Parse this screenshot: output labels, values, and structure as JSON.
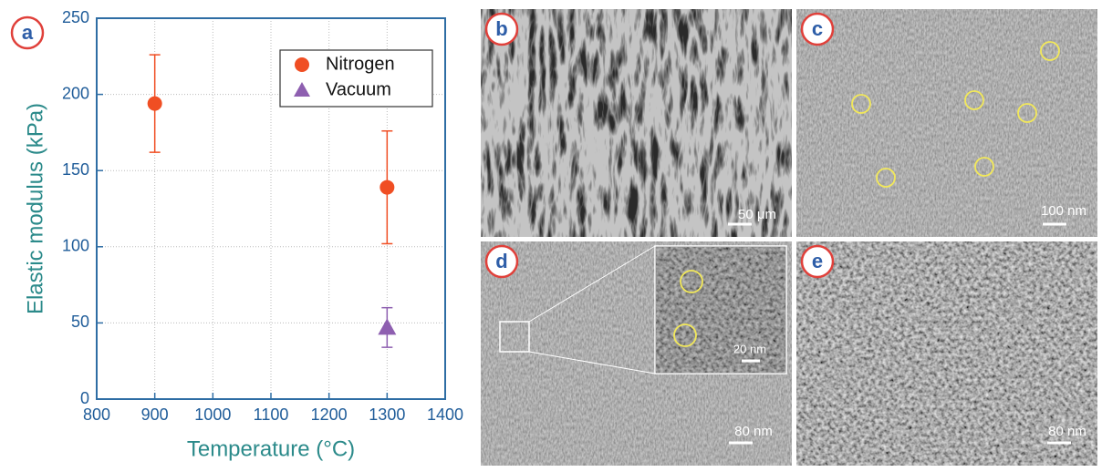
{
  "chart_data": {
    "type": "scatter",
    "panel_label": "a",
    "x_label": "Temperature (°C)",
    "y_label": "Elastic modulus (kPa)",
    "series": [
      {
        "name": "Nitrogen",
        "color": "#f04e23",
        "marker": "circle",
        "x": [
          900,
          1300
        ],
        "values": [
          194,
          139
        ],
        "errors": [
          32,
          37
        ]
      },
      {
        "name": "Vacuum",
        "color": "#8e5fb0",
        "marker": "triangle",
        "x": [
          1300
        ],
        "values": [
          47
        ],
        "errors": [
          13
        ]
      }
    ],
    "xlim": [
      800,
      1400
    ],
    "xticks": [
      800,
      900,
      1000,
      1100,
      1200,
      1300,
      1400
    ],
    "ylim": [
      0,
      250
    ],
    "yticks": [
      0,
      50,
      100,
      150,
      200,
      250
    ],
    "grid": true,
    "legend": "upper right"
  },
  "panels": [
    {
      "label": "b",
      "scale_bar": "50 μm"
    },
    {
      "label": "c",
      "scale_bar": "100 nm"
    },
    {
      "label": "d",
      "scale_bar": "80 nm",
      "inset_scale_bar": "20 nm"
    },
    {
      "label": "e",
      "scale_bar": "80 nm"
    }
  ]
}
